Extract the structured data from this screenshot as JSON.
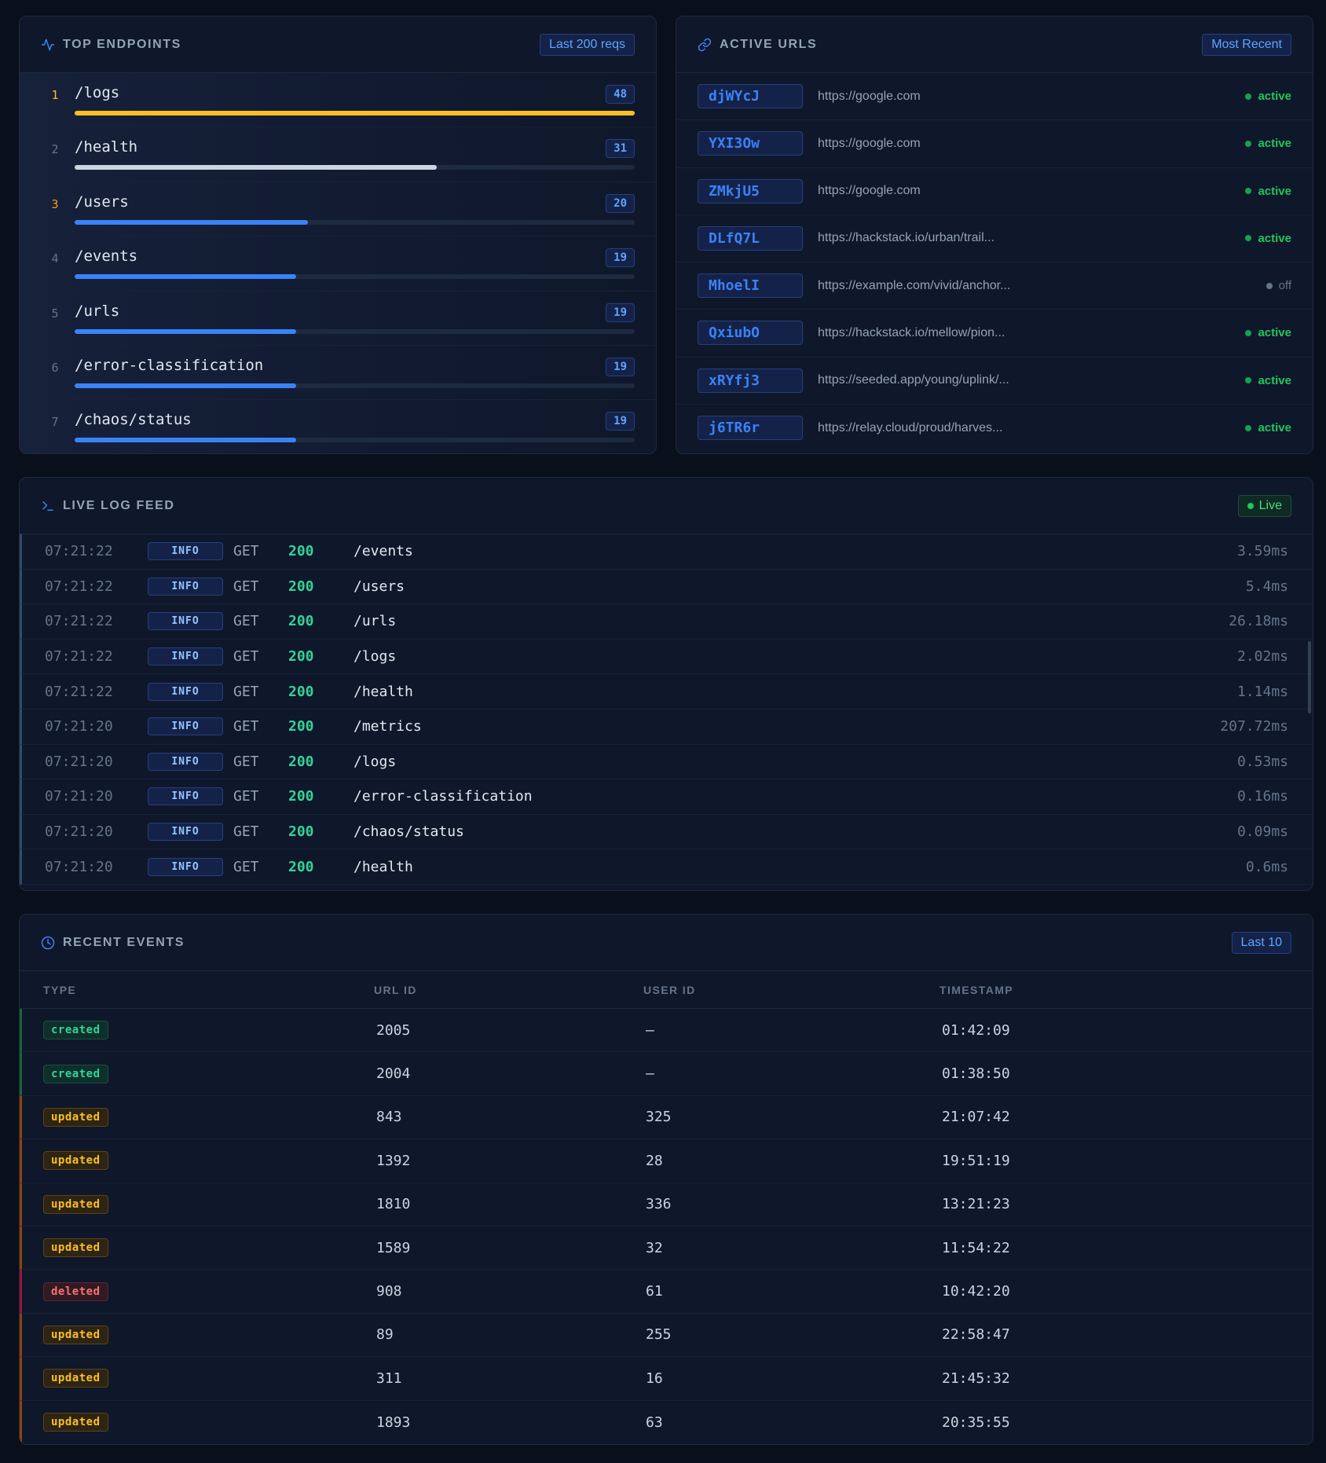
{
  "top_endpoints": {
    "title": "TOP ENDPOINTS",
    "badge": "Last 200 reqs",
    "items": [
      {
        "rank": "1",
        "path": "/logs",
        "count": "48",
        "fraction": 1.0,
        "color": "#fbbf24"
      },
      {
        "rank": "2",
        "path": "/health",
        "count": "31",
        "fraction": 0.646,
        "color": "#cbd5e1"
      },
      {
        "rank": "3",
        "path": "/users",
        "count": "20",
        "fraction": 0.417,
        "color": "#3b82f6"
      },
      {
        "rank": "4",
        "path": "/events",
        "count": "19",
        "fraction": 0.396,
        "color": "#3b82f6"
      },
      {
        "rank": "5",
        "path": "/urls",
        "count": "19",
        "fraction": 0.396,
        "color": "#3b82f6"
      },
      {
        "rank": "6",
        "path": "/error-classification",
        "count": "19",
        "fraction": 0.396,
        "color": "#3b82f6"
      },
      {
        "rank": "7",
        "path": "/chaos/status",
        "count": "19",
        "fraction": 0.396,
        "color": "#3b82f6"
      }
    ]
  },
  "active_urls": {
    "title": "ACTIVE URLS",
    "badge": "Most Recent",
    "items": [
      {
        "id": "djWYcJ",
        "url": "https://google.com",
        "status": "active"
      },
      {
        "id": "YXI3Ow",
        "url": "https://google.com",
        "status": "active"
      },
      {
        "id": "ZMkjU5",
        "url": "https://google.com",
        "status": "active"
      },
      {
        "id": "DLfQ7L",
        "url": "https://hackstack.io/urban/trail...",
        "status": "active"
      },
      {
        "id": "MhoelI",
        "url": "https://example.com/vivid/anchor...",
        "status": "off"
      },
      {
        "id": "QxiubO",
        "url": "https://hackstack.io/mellow/pion...",
        "status": "active"
      },
      {
        "id": "xRYfj3",
        "url": "https://seeded.app/young/uplink/...",
        "status": "active"
      },
      {
        "id": "j6TR6r",
        "url": "https://relay.cloud/proud/harves...",
        "status": "active"
      }
    ]
  },
  "live_log": {
    "title": "LIVE LOG FEED",
    "badge": "Live",
    "rows": [
      {
        "time": "07:21:22",
        "level": "INFO",
        "method": "GET",
        "code": "200",
        "path": "/events",
        "duration": "3.59ms"
      },
      {
        "time": "07:21:22",
        "level": "INFO",
        "method": "GET",
        "code": "200",
        "path": "/users",
        "duration": "5.4ms"
      },
      {
        "time": "07:21:22",
        "level": "INFO",
        "method": "GET",
        "code": "200",
        "path": "/urls",
        "duration": "26.18ms"
      },
      {
        "time": "07:21:22",
        "level": "INFO",
        "method": "GET",
        "code": "200",
        "path": "/logs",
        "duration": "2.02ms"
      },
      {
        "time": "07:21:22",
        "level": "INFO",
        "method": "GET",
        "code": "200",
        "path": "/health",
        "duration": "1.14ms"
      },
      {
        "time": "07:21:20",
        "level": "INFO",
        "method": "GET",
        "code": "200",
        "path": "/metrics",
        "duration": "207.72ms"
      },
      {
        "time": "07:21:20",
        "level": "INFO",
        "method": "GET",
        "code": "200",
        "path": "/logs",
        "duration": "0.53ms"
      },
      {
        "time": "07:21:20",
        "level": "INFO",
        "method": "GET",
        "code": "200",
        "path": "/error-classification",
        "duration": "0.16ms"
      },
      {
        "time": "07:21:20",
        "level": "INFO",
        "method": "GET",
        "code": "200",
        "path": "/chaos/status",
        "duration": "0.09ms"
      },
      {
        "time": "07:21:20",
        "level": "INFO",
        "method": "GET",
        "code": "200",
        "path": "/health",
        "duration": "0.6ms"
      }
    ]
  },
  "recent_events": {
    "title": "RECENT EVENTS",
    "badge": "Last 10",
    "columns": {
      "type": "TYPE",
      "url_id": "URL ID",
      "user_id": "USER ID",
      "timestamp": "TIMESTAMP"
    },
    "rows": [
      {
        "type": "created",
        "url_id": "2005",
        "user_id": "—",
        "timestamp": "01:42:09"
      },
      {
        "type": "created",
        "url_id": "2004",
        "user_id": "—",
        "timestamp": "01:38:50"
      },
      {
        "type": "updated",
        "url_id": "843",
        "user_id": "325",
        "timestamp": "21:07:42"
      },
      {
        "type": "updated",
        "url_id": "1392",
        "user_id": "28",
        "timestamp": "19:51:19"
      },
      {
        "type": "updated",
        "url_id": "1810",
        "user_id": "336",
        "timestamp": "13:21:23"
      },
      {
        "type": "updated",
        "url_id": "1589",
        "user_id": "32",
        "timestamp": "11:54:22"
      },
      {
        "type": "deleted",
        "url_id": "908",
        "user_id": "61",
        "timestamp": "10:42:20"
      },
      {
        "type": "updated",
        "url_id": "89",
        "user_id": "255",
        "timestamp": "22:58:47"
      },
      {
        "type": "updated",
        "url_id": "311",
        "user_id": "16",
        "timestamp": "21:45:32"
      },
      {
        "type": "updated",
        "url_id": "1893",
        "user_id": "63",
        "timestamp": "20:35:55"
      }
    ]
  },
  "icons": {
    "top_endpoints": "activity-icon",
    "active_urls": "link-icon",
    "live_log": "terminal-icon",
    "recent_events": "clock-icon"
  }
}
